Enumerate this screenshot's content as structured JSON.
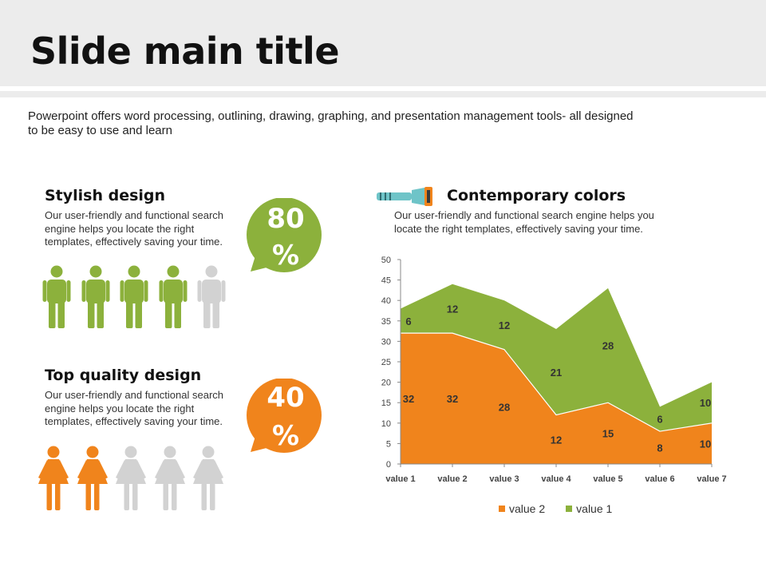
{
  "slide": {
    "title": "Slide main title",
    "intro": "Powerpoint offers word processing, outlining, drawing, graphing, and presentation management tools- all designed to be easy to use and learn"
  },
  "sections": {
    "stylish": {
      "title": "Stylish design",
      "text": "Our user-friendly and functional search engine helps you locate the right templates, effectively saving your time.",
      "percent_line1": "80",
      "percent_line2": "%",
      "percent_value": 80,
      "figures_total": 5,
      "figures_filled": 4,
      "accent": "#8cb13c",
      "icon": "male-person-icon"
    },
    "quality": {
      "title": "Top quality design",
      "text": "Our user-friendly and functional search engine helps you locate the right templates, effectively saving your time.",
      "percent_line1": "40",
      "percent_line2": "%",
      "percent_value": 40,
      "figures_total": 5,
      "figures_filled": 2,
      "accent": "#f0841c",
      "icon": "female-person-icon"
    },
    "contemporary": {
      "title": "Contemporary colors",
      "text": "Our user-friendly and functional search engine helps you locate the right templates, effectively saving your time.",
      "icon": "flashlight-icon"
    }
  },
  "colors": {
    "green": "#8cb13c",
    "orange": "#f0841c",
    "inactive": "#d2d2d2",
    "title_band": "#ececec"
  },
  "chart_data": {
    "type": "area",
    "stacked": true,
    "categories": [
      "value 1",
      "value 2",
      "value 3",
      "value 4",
      "value 5",
      "value 6",
      "value 7"
    ],
    "series": [
      {
        "name": "value 2",
        "values": [
          32,
          32,
          28,
          12,
          15,
          8,
          10
        ],
        "color": "#f0841c"
      },
      {
        "name": "value 1",
        "values": [
          6,
          12,
          12,
          21,
          28,
          6,
          10
        ],
        "color": "#8cb13c"
      }
    ],
    "ylim": [
      0,
      50
    ],
    "yticks": [
      0,
      5,
      10,
      15,
      20,
      25,
      30,
      35,
      40,
      45,
      50
    ],
    "grid": false,
    "legend": "bottom",
    "data_labels": true
  }
}
